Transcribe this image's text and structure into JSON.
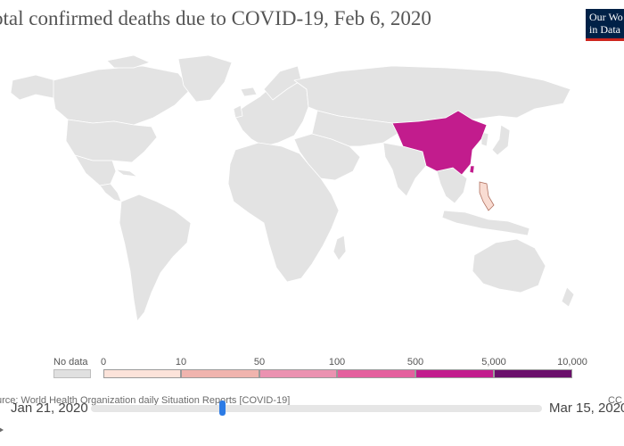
{
  "header": {
    "title": "otal confirmed deaths due to COVID-19, Feb 6, 2020",
    "logo_line1": "Our Wo",
    "logo_line2": "in Data"
  },
  "map": {
    "land_color": "#e3e3e3",
    "border_color": "#ffffff",
    "highlight": {
      "region": "China",
      "color": "#c21c8d"
    },
    "secondary": {
      "region": "Philippines",
      "color": "#f9dcd2"
    }
  },
  "legend": {
    "nodata_label": "No data",
    "nodata_color": "#e0e0e0",
    "ticks": [
      "0",
      "10",
      "50",
      "100",
      "500",
      "5,000",
      "10,000"
    ],
    "colors": [
      "#fce3da",
      "#f0b4ae",
      "#eb92b1",
      "#e4609e",
      "#c21c8d",
      "#6a0f6b"
    ]
  },
  "footer": {
    "source": "urce: World Health Organization daily Situation Reports [COVID-19]",
    "license": "CC"
  },
  "timeline": {
    "start": "Jan 21, 2020",
    "end": "Mar 15, 2020",
    "position": 0.29
  }
}
